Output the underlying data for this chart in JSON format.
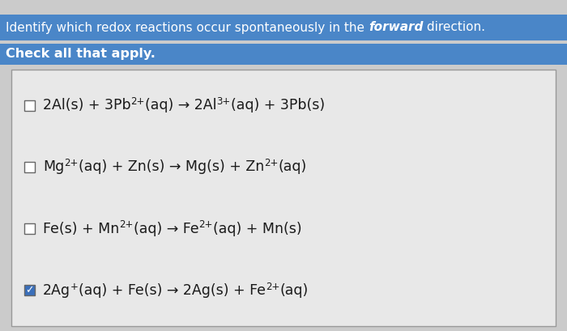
{
  "title_normal": "Identify which redox reactions occur spontaneously in the ",
  "title_italic": "forward",
  "title_end": " direction.",
  "subtitle": "Check all that apply.",
  "bg_color": "#cbcbcb",
  "title_bg": "#4a86c8",
  "subtitle_bg": "#4a86c8",
  "box_bg": "#e8e8e8",
  "box_border": "#999999",
  "reactions": [
    {
      "checked": false,
      "formula": "2Al(s) + 3Pb²⁺(aq) → 2Al³⁺(aq) + 3Pb(s)",
      "parts": [
        [
          "2Al(s) + 3Pb",
          "n"
        ],
        [
          "2+",
          "s"
        ],
        [
          "(aq) → 2Al",
          "n"
        ],
        [
          "3+",
          "s"
        ],
        [
          "(aq) + 3Pb(s)",
          "n"
        ]
      ]
    },
    {
      "checked": false,
      "formula": "Mg²⁺(aq) + Zn(s) → Mg(s) + Zn²⁺(aq)",
      "parts": [
        [
          "Mg",
          "n"
        ],
        [
          "2+",
          "s"
        ],
        [
          "(aq) + Zn(s) → Mg(s) + Zn",
          "n"
        ],
        [
          "2+",
          "s"
        ],
        [
          "(aq)",
          "n"
        ]
      ]
    },
    {
      "checked": false,
      "formula": "Fe(s) + Mn²⁺(aq) → Fe²⁺(aq) + Mn(s)",
      "parts": [
        [
          "Fe(s) + Mn",
          "n"
        ],
        [
          "2+",
          "s"
        ],
        [
          "(aq) → Fe",
          "n"
        ],
        [
          "2+",
          "s"
        ],
        [
          "(aq) + Mn(s)",
          "n"
        ]
      ]
    },
    {
      "checked": true,
      "formula": "2Ag⁺(aq) + Fe(s) → 2Ag(s) + Fe²⁺(aq)",
      "parts": [
        [
          "2Ag",
          "n"
        ],
        [
          "+",
          "s"
        ],
        [
          "(aq) + Fe(s) → 2Ag(s) + Fe",
          "n"
        ],
        [
          "2+",
          "s"
        ],
        [
          "(aq)",
          "n"
        ]
      ]
    }
  ],
  "checkbox_unchecked_bg": "#ffffff",
  "checkbox_checked_bg": "#3a6fba",
  "check_color": "#ffffff",
  "text_color": "#1a1a1a",
  "title_fontsize": 11.0,
  "reaction_fontsize": 12.5,
  "subtitle_fontsize": 11.5
}
